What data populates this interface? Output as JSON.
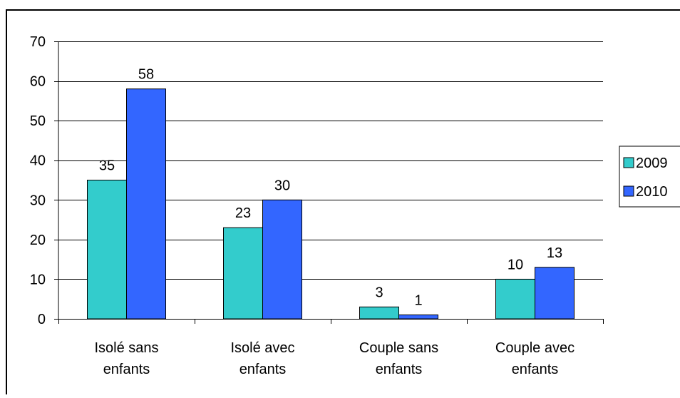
{
  "chart_data": {
    "type": "bar",
    "title": "",
    "xlabel": "",
    "ylabel": "",
    "categories": [
      [
        "Isolé sans",
        "enfants"
      ],
      [
        "Isolé avec",
        "enfants"
      ],
      [
        "Couple sans",
        "enfants"
      ],
      [
        "Couple avec",
        "enfants"
      ]
    ],
    "series": [
      {
        "name": "2009",
        "values": [
          35,
          23,
          3,
          10
        ],
        "color": "#33CCCC"
      },
      {
        "name": "2010",
        "values": [
          58,
          30,
          1,
          13
        ],
        "color": "#3366FF"
      }
    ],
    "ylim": [
      0,
      70
    ],
    "yticks": [
      0,
      10,
      20,
      30,
      40,
      50,
      60,
      70
    ],
    "grid": true,
    "legend_position": "right",
    "data_labels": true
  }
}
